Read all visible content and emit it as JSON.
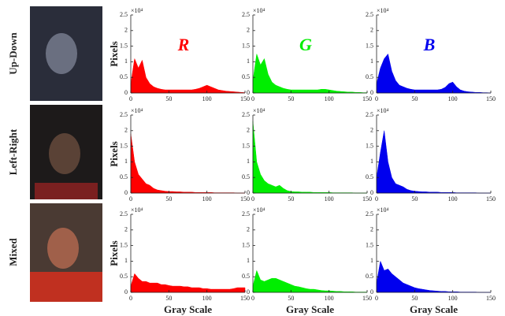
{
  "rows": [
    {
      "label": "Up-Down"
    },
    {
      "label": "Left-Right"
    },
    {
      "label": "Mixed"
    }
  ],
  "chart_data": [
    {
      "type": "area",
      "title": "R",
      "ylabel": "Pixels",
      "y_multiplier": "×10⁴",
      "color": "#ff0000",
      "x": [
        0,
        5,
        10,
        15,
        20,
        25,
        30,
        35,
        40,
        45,
        50,
        55,
        60,
        65,
        70,
        75,
        80,
        85,
        90,
        95,
        100,
        105,
        110,
        115,
        120,
        125,
        130,
        135,
        140,
        145,
        150
      ],
      "values": [
        0.3,
        1.1,
        0.8,
        1.05,
        0.5,
        0.3,
        0.2,
        0.15,
        0.12,
        0.1,
        0.1,
        0.1,
        0.1,
        0.1,
        0.1,
        0.1,
        0.1,
        0.12,
        0.15,
        0.2,
        0.25,
        0.2,
        0.15,
        0.1,
        0.08,
        0.06,
        0.05,
        0.04,
        0.03,
        0.02,
        0.01
      ],
      "xlim": [
        0,
        150
      ],
      "xticks": [
        0,
        50,
        100,
        150
      ],
      "ylim": [
        0,
        2.5
      ],
      "yticks": [
        0,
        0.5,
        1,
        1.5,
        2,
        2.5
      ]
    },
    {
      "type": "area",
      "title": "G",
      "y_multiplier": "×10⁴",
      "color": "#00ee00",
      "x": [
        0,
        5,
        10,
        15,
        20,
        25,
        30,
        35,
        40,
        45,
        50,
        55,
        60,
        65,
        70,
        75,
        80,
        85,
        90,
        95,
        100,
        105,
        110,
        115,
        120,
        125,
        130,
        135,
        140,
        145,
        150
      ],
      "values": [
        0.4,
        1.25,
        0.9,
        1.1,
        0.6,
        0.35,
        0.25,
        0.2,
        0.15,
        0.12,
        0.1,
        0.1,
        0.1,
        0.1,
        0.1,
        0.1,
        0.1,
        0.1,
        0.12,
        0.12,
        0.1,
        0.08,
        0.06,
        0.05,
        0.04,
        0.03,
        0.03,
        0.02,
        0.02,
        0.01,
        0.01
      ],
      "xlim": [
        0,
        150
      ],
      "xticks": [
        0,
        50,
        100,
        150
      ],
      "ylim": [
        0,
        2.5
      ],
      "yticks": [
        0,
        0.5,
        1,
        1.5,
        2,
        2.5
      ]
    },
    {
      "type": "area",
      "title": "B",
      "y_multiplier": "×10⁴",
      "color": "#0000ee",
      "x": [
        0,
        5,
        10,
        15,
        20,
        25,
        30,
        35,
        40,
        45,
        50,
        55,
        60,
        65,
        70,
        75,
        80,
        85,
        90,
        95,
        100,
        105,
        110,
        115,
        120,
        125,
        130,
        135,
        140,
        145,
        150
      ],
      "values": [
        0.3,
        0.8,
        1.1,
        1.25,
        0.7,
        0.4,
        0.25,
        0.2,
        0.15,
        0.12,
        0.1,
        0.1,
        0.1,
        0.1,
        0.1,
        0.1,
        0.1,
        0.12,
        0.18,
        0.3,
        0.35,
        0.2,
        0.1,
        0.06,
        0.04,
        0.03,
        0.02,
        0.02,
        0.01,
        0.01,
        0
      ],
      "xlim": [
        0,
        150
      ],
      "xticks": [
        0,
        50,
        100,
        150
      ],
      "ylim": [
        0,
        2.5
      ],
      "yticks": [
        0,
        0.5,
        1,
        1.5,
        2,
        2.5
      ]
    },
    {
      "type": "area",
      "ylabel": "Pixels",
      "y_multiplier": "×10⁴",
      "color": "#ff0000",
      "x": [
        0,
        5,
        10,
        15,
        20,
        25,
        30,
        35,
        40,
        45,
        50,
        55,
        60,
        65,
        70,
        75,
        80,
        85,
        90,
        95,
        100,
        105,
        110,
        115,
        120,
        125,
        130,
        135,
        140,
        145,
        150
      ],
      "values": [
        1.9,
        1.0,
        0.6,
        0.45,
        0.3,
        0.25,
        0.15,
        0.1,
        0.08,
        0.06,
        0.05,
        0.05,
        0.04,
        0.04,
        0.03,
        0.03,
        0.03,
        0.02,
        0.02,
        0.02,
        0.02,
        0.02,
        0.01,
        0.01,
        0.01,
        0.01,
        0.01,
        0.01,
        0,
        0,
        0
      ],
      "xlim": [
        0,
        150
      ],
      "xticks": [
        0,
        50,
        100,
        150
      ],
      "ylim": [
        0,
        2.5
      ],
      "yticks": [
        0,
        0.5,
        1,
        1.5,
        2,
        2.5
      ]
    },
    {
      "type": "area",
      "y_multiplier": "×10⁴",
      "color": "#00ee00",
      "x": [
        0,
        5,
        10,
        15,
        20,
        25,
        30,
        35,
        40,
        45,
        50,
        55,
        60,
        65,
        70,
        75,
        80,
        85,
        90,
        95,
        100,
        105,
        110,
        115,
        120,
        125,
        130,
        135,
        140,
        145,
        150
      ],
      "values": [
        2.3,
        1.0,
        0.6,
        0.4,
        0.3,
        0.25,
        0.2,
        0.25,
        0.15,
        0.08,
        0.05,
        0.04,
        0.04,
        0.03,
        0.03,
        0.03,
        0.02,
        0.02,
        0.02,
        0.02,
        0.02,
        0.01,
        0.01,
        0.01,
        0.01,
        0.01,
        0.01,
        0,
        0,
        0,
        0
      ],
      "xlim": [
        0,
        150
      ],
      "xticks": [
        0,
        50,
        100,
        150
      ],
      "ylim": [
        0,
        2.5
      ],
      "yticks": [
        0,
        0.5,
        1,
        1.5,
        2,
        2.5
      ]
    },
    {
      "type": "area",
      "y_multiplier": "×10⁴",
      "color": "#0000ee",
      "x": [
        0,
        5,
        10,
        15,
        20,
        25,
        30,
        35,
        40,
        45,
        50,
        55,
        60,
        65,
        70,
        75,
        80,
        85,
        90,
        95,
        100,
        105,
        110,
        115,
        120,
        125,
        130,
        135,
        140,
        145,
        150
      ],
      "values": [
        0.5,
        1.3,
        2.0,
        1.0,
        0.5,
        0.3,
        0.25,
        0.2,
        0.12,
        0.08,
        0.06,
        0.05,
        0.04,
        0.04,
        0.03,
        0.03,
        0.03,
        0.02,
        0.02,
        0.02,
        0.02,
        0.01,
        0.01,
        0.01,
        0.01,
        0.01,
        0.01,
        0,
        0,
        0,
        0
      ],
      "xlim": [
        0,
        150
      ],
      "xticks": [
        0,
        50,
        100,
        150
      ],
      "ylim": [
        0,
        2.5
      ],
      "yticks": [
        0,
        0.5,
        1,
        1.5,
        2,
        2.5
      ]
    },
    {
      "type": "area",
      "ylabel": "Pixels",
      "xlabel": "Gray Scale",
      "y_multiplier": "×10⁴",
      "color": "#ff0000",
      "x": [
        0,
        5,
        10,
        15,
        20,
        25,
        30,
        35,
        40,
        45,
        50,
        55,
        60,
        65,
        70,
        75,
        80,
        85,
        90,
        95,
        100,
        105,
        110,
        115,
        120,
        125,
        130,
        135,
        140,
        145,
        150
      ],
      "values": [
        0.2,
        0.6,
        0.45,
        0.35,
        0.35,
        0.3,
        0.3,
        0.3,
        0.25,
        0.25,
        0.22,
        0.2,
        0.2,
        0.2,
        0.18,
        0.18,
        0.15,
        0.15,
        0.15,
        0.12,
        0.12,
        0.1,
        0.1,
        0.1,
        0.1,
        0.1,
        0.1,
        0.12,
        0.15,
        0.15,
        0.15
      ],
      "xlim": [
        0,
        150
      ],
      "xticks": [
        0,
        50,
        100,
        150
      ],
      "ylim": [
        0,
        2.5
      ],
      "yticks": [
        0,
        0.5,
        1,
        1.5,
        2,
        2.5
      ]
    },
    {
      "type": "area",
      "xlabel": "Gray Scale",
      "y_multiplier": "×10⁴",
      "color": "#00ee00",
      "x": [
        0,
        5,
        10,
        15,
        20,
        25,
        30,
        35,
        40,
        45,
        50,
        55,
        60,
        65,
        70,
        75,
        80,
        85,
        90,
        95,
        100,
        105,
        110,
        115,
        120,
        125,
        130,
        135,
        140,
        145,
        150
      ],
      "values": [
        0.2,
        0.7,
        0.4,
        0.35,
        0.4,
        0.45,
        0.45,
        0.4,
        0.35,
        0.3,
        0.25,
        0.2,
        0.18,
        0.15,
        0.12,
        0.1,
        0.1,
        0.08,
        0.06,
        0.05,
        0.05,
        0.04,
        0.03,
        0.03,
        0.02,
        0.02,
        0.02,
        0.01,
        0.01,
        0.01,
        0.01
      ],
      "xlim": [
        0,
        150
      ],
      "xticks": [
        0,
        50,
        100,
        150
      ],
      "ylim": [
        0,
        2.5
      ],
      "yticks": [
        0,
        0.5,
        1,
        1.5,
        2,
        2.5
      ]
    },
    {
      "type": "area",
      "xlabel": "Gray Scale",
      "y_multiplier": "×10⁴",
      "color": "#0000ee",
      "x": [
        0,
        5,
        10,
        15,
        20,
        25,
        30,
        35,
        40,
        45,
        50,
        55,
        60,
        65,
        70,
        75,
        80,
        85,
        90,
        95,
        100,
        105,
        110,
        115,
        120,
        125,
        130,
        135,
        140,
        145,
        150
      ],
      "values": [
        0.3,
        1.0,
        0.7,
        0.75,
        0.6,
        0.5,
        0.4,
        0.3,
        0.25,
        0.2,
        0.15,
        0.12,
        0.1,
        0.08,
        0.06,
        0.05,
        0.04,
        0.03,
        0.03,
        0.02,
        0.02,
        0.02,
        0.01,
        0.01,
        0.01,
        0.01,
        0.01,
        0,
        0,
        0,
        0
      ],
      "xlim": [
        0,
        150
      ],
      "xticks": [
        0,
        50,
        100,
        150
      ],
      "ylim": [
        0,
        2.5
      ],
      "yticks": [
        0,
        0.5,
        1,
        1.5,
        2,
        2.5
      ]
    }
  ]
}
